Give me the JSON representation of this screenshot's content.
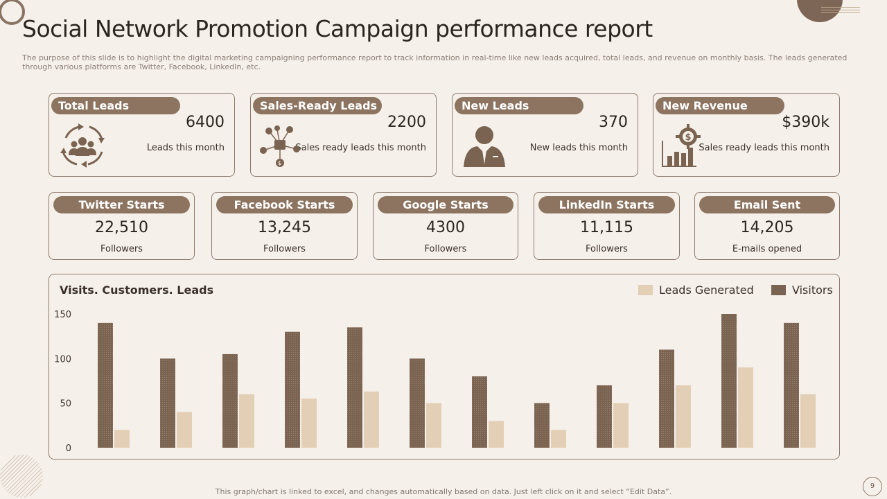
{
  "title": "Social Network Promotion Campaign performance report",
  "subtitle": "The purpose of this slide is to highlight the digital marketing campaigning performance report to track information in real-time like new leads acquired, total leads, and revenue on monthly basis. The leads generated through various platforms are Twitter, Facebook, LinkedIn, etc.",
  "kpis": [
    {
      "label": "Total Leads",
      "value": "6400",
      "caption": "Leads this month",
      "icon": "team-cycle-icon"
    },
    {
      "label": "Sales-Ready Leads",
      "value": "2200",
      "caption": "Sales ready leads this month",
      "icon": "network-hub-icon"
    },
    {
      "label": "New Leads",
      "value": "370",
      "caption": "New leads this month",
      "icon": "businessman-icon"
    },
    {
      "label": "New Revenue",
      "value": "$390k",
      "caption": "Sales ready leads this month",
      "icon": "revenue-growth-icon"
    }
  ],
  "channels": [
    {
      "label": "Twitter Starts",
      "value": "22,510",
      "caption": "Followers"
    },
    {
      "label": "Facebook Starts",
      "value": "13,245",
      "caption": "Followers"
    },
    {
      "label": "Google Starts",
      "value": "4300",
      "caption": "Followers"
    },
    {
      "label": "LinkedIn Starts",
      "value": "11,115",
      "caption": "Followers"
    },
    {
      "label": "Email Sent",
      "value": "14,205",
      "caption": "E-mails opened"
    }
  ],
  "chart_data": {
    "type": "bar",
    "title": "Visits. Customers. Leads",
    "categories": [
      "",
      "",
      "",
      "",
      "",
      "",
      "",
      "",
      "",
      "",
      "",
      ""
    ],
    "series": [
      {
        "name": "Visitors",
        "color": "#7a6350",
        "values": [
          140,
          100,
          105,
          130,
          135,
          100,
          80,
          50,
          70,
          110,
          150,
          140
        ]
      },
      {
        "name": "Leads Generated",
        "color": "#e3cfb6",
        "values": [
          20,
          40,
          60,
          55,
          63,
          50,
          30,
          20,
          50,
          70,
          90,
          60
        ]
      }
    ],
    "legend_order": [
      "Leads Generated",
      "Visitors"
    ],
    "yticks": [
      0,
      50,
      100,
      150
    ],
    "ylim": [
      0,
      150
    ],
    "legend": "top-right",
    "grid": false
  },
  "footer": "This graph/chart is linked to excel,  and changes automatically based on data. Just left click on it and select “Edit Data”.",
  "page_number": "9"
}
